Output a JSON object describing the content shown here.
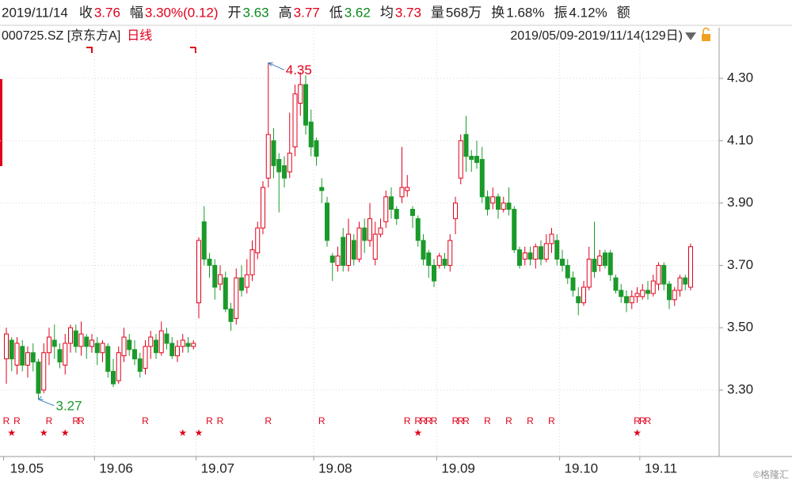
{
  "header": {
    "date": "2019/11/14",
    "items": [
      {
        "label": "收",
        "value": "3.76",
        "color": "#e0001b"
      },
      {
        "label": "幅",
        "value": "3.30%(0.12)",
        "color": "#e0001b"
      },
      {
        "label": "开",
        "value": "3.63",
        "color": "#0b8a1e"
      },
      {
        "label": "高",
        "value": "3.77",
        "color": "#e0001b"
      },
      {
        "label": "低",
        "value": "3.62",
        "color": "#0b8a1e"
      },
      {
        "label": "均",
        "value": "3.73",
        "color": "#e0001b"
      },
      {
        "label": "量",
        "value": "568万",
        "color": "#222222"
      },
      {
        "label": "换",
        "value": "1.68%",
        "color": "#222222"
      },
      {
        "label": "振",
        "value": "4.12%",
        "color": "#222222"
      },
      {
        "label": "额"
      }
    ],
    "symbol": "000725.SZ [京东方A]",
    "period": "日线",
    "range": "2019/05/09-2019/11/14(129日)"
  },
  "chart_data": {
    "type": "candlestick",
    "up_color": "#e0001b",
    "down_color": "#1a9a2a",
    "categories": [
      "19.05",
      null,
      null,
      null,
      null,
      null,
      null,
      null,
      null,
      null,
      null,
      null,
      null,
      null,
      null,
      null,
      null,
      "19.06",
      null,
      null,
      null,
      null,
      null,
      null,
      null,
      null,
      null,
      null,
      null,
      null,
      null,
      null,
      null,
      null,
      null,
      null,
      "19.07",
      null,
      null,
      null,
      null,
      null,
      null,
      null,
      null,
      null,
      null,
      null,
      null,
      null,
      null,
      null,
      null,
      null,
      null,
      null,
      null,
      null,
      "19.08",
      null,
      null,
      null,
      null,
      null,
      null,
      null,
      null,
      null,
      null,
      null,
      null,
      null,
      null,
      null,
      null,
      null,
      null,
      null,
      null,
      null,
      null,
      "19.09",
      null,
      null,
      null,
      null,
      null,
      null,
      null,
      null,
      null,
      null,
      null,
      null,
      null,
      null,
      null,
      null,
      null,
      null,
      null,
      null,
      null,
      null,
      "19.10",
      null,
      null,
      null,
      null,
      null,
      null,
      null,
      null,
      null,
      null,
      null,
      null,
      null,
      null,
      "19.11",
      null,
      null,
      null,
      null,
      null,
      null,
      null,
      null,
      null
    ],
    "open": [
      3.4,
      3.46,
      3.38,
      3.44,
      3.38,
      3.42,
      3.39,
      3.3,
      3.42,
      3.46,
      3.43,
      3.38,
      3.45,
      3.49,
      3.44,
      3.47,
      3.44,
      3.45,
      3.42,
      3.44,
      3.36,
      3.33,
      3.41,
      3.46,
      3.43,
      3.4,
      3.37,
      3.44,
      3.46,
      3.42,
      3.48,
      3.45,
      3.41,
      3.44,
      3.45,
      3.44,
      3.58,
      3.84,
      3.72,
      3.7,
      3.64,
      3.66,
      3.56,
      3.53,
      3.66,
      3.63,
      3.67,
      3.74,
      3.82,
      3.98,
      4.1,
      4.04,
      4.02,
      4.0,
      4.08,
      4.22,
      4.28,
      4.16,
      4.1,
      3.95,
      3.9,
      3.73,
      3.7,
      3.79,
      3.7,
      3.78,
      3.72,
      3.82,
      3.78,
      3.72,
      3.8,
      3.84,
      3.92,
      3.88,
      3.92,
      3.94,
      3.88,
      3.85,
      3.78,
      3.74,
      3.7,
      3.7,
      3.72,
      3.7,
      3.85,
      3.98,
      4.12,
      4.05,
      4.05,
      4.04,
      3.92,
      3.9,
      3.92,
      3.88,
      3.9,
      3.88,
      3.75,
      3.72,
      3.74,
      3.72,
      3.76,
      3.72,
      3.77,
      3.78,
      3.72,
      3.7,
      3.66,
      3.6,
      3.58,
      3.63,
      3.72,
      3.7,
      3.74,
      3.74,
      3.66,
      3.62,
      3.6,
      3.58,
      3.6,
      3.6,
      3.62,
      3.61,
      3.64,
      3.7,
      3.64,
      3.59,
      3.62,
      3.66,
      3.63
    ],
    "high": [
      3.5,
      3.47,
      3.47,
      3.46,
      3.44,
      3.45,
      3.4,
      3.45,
      3.5,
      3.51,
      3.45,
      3.48,
      3.51,
      3.51,
      3.52,
      3.48,
      3.48,
      3.47,
      3.46,
      3.45,
      3.4,
      3.44,
      3.5,
      3.48,
      3.46,
      3.42,
      3.46,
      3.49,
      3.48,
      3.52,
      3.5,
      3.47,
      3.46,
      3.48,
      3.47,
      3.46,
      3.79,
      3.89,
      3.74,
      3.72,
      3.7,
      3.68,
      3.58,
      3.69,
      3.7,
      3.72,
      3.78,
      3.84,
      3.97,
      4.35,
      4.14,
      4.06,
      4.05,
      4.19,
      4.28,
      4.32,
      4.31,
      4.2,
      4.11,
      3.98,
      3.92,
      3.74,
      3.76,
      3.82,
      3.85,
      3.8,
      3.84,
      3.85,
      3.9,
      3.84,
      3.85,
      3.94,
      3.95,
      3.89,
      4.08,
      3.99,
      3.89,
      3.86,
      3.8,
      3.75,
      3.72,
      3.74,
      3.74,
      3.8,
      3.92,
      4.12,
      4.18,
      4.07,
      4.1,
      4.08,
      3.94,
      3.95,
      3.93,
      3.92,
      3.95,
      3.89,
      3.76,
      3.76,
      3.76,
      3.77,
      3.78,
      3.8,
      3.82,
      3.8,
      3.75,
      3.72,
      3.68,
      3.63,
      3.65,
      3.76,
      3.84,
      3.75,
      3.75,
      3.75,
      3.67,
      3.64,
      3.62,
      3.62,
      3.63,
      3.64,
      3.65,
      3.67,
      3.71,
      3.71,
      3.65,
      3.63,
      3.67,
      3.67,
      3.77
    ],
    "low": [
      3.32,
      3.36,
      3.35,
      3.36,
      3.34,
      3.36,
      3.27,
      3.29,
      3.38,
      3.4,
      3.37,
      3.35,
      3.42,
      3.42,
      3.41,
      3.4,
      3.42,
      3.38,
      3.39,
      3.34,
      3.31,
      3.32,
      3.39,
      3.41,
      3.38,
      3.34,
      3.35,
      3.4,
      3.4,
      3.41,
      3.43,
      3.4,
      3.39,
      3.42,
      3.42,
      3.43,
      3.53,
      3.7,
      3.66,
      3.59,
      3.62,
      3.55,
      3.49,
      3.51,
      3.6,
      3.61,
      3.65,
      3.72,
      3.8,
      3.95,
      3.98,
      3.87,
      3.95,
      3.98,
      4.05,
      4.18,
      4.12,
      4.05,
      4.02,
      3.9,
      3.76,
      3.65,
      3.68,
      3.68,
      3.68,
      3.7,
      3.71,
      3.74,
      3.76,
      3.7,
      3.79,
      3.82,
      3.85,
      3.83,
      3.9,
      3.92,
      3.82,
      3.76,
      3.7,
      3.66,
      3.63,
      3.69,
      3.69,
      3.68,
      3.8,
      3.96,
      4.0,
      4.0,
      4.01,
      3.9,
      3.86,
      3.88,
      3.85,
      3.87,
      3.86,
      3.74,
      3.69,
      3.7,
      3.7,
      3.69,
      3.7,
      3.71,
      3.74,
      3.7,
      3.68,
      3.64,
      3.6,
      3.54,
      3.57,
      3.62,
      3.66,
      3.68,
      3.69,
      3.65,
      3.61,
      3.58,
      3.55,
      3.56,
      3.58,
      3.59,
      3.59,
      3.6,
      3.62,
      3.62,
      3.56,
      3.57,
      3.6,
      3.62,
      3.62
    ],
    "close": [
      3.48,
      3.4,
      3.45,
      3.38,
      3.42,
      3.39,
      3.29,
      3.42,
      3.47,
      3.44,
      3.39,
      3.45,
      3.5,
      3.44,
      3.48,
      3.44,
      3.46,
      3.42,
      3.45,
      3.36,
      3.32,
      3.42,
      3.47,
      3.43,
      3.4,
      3.36,
      3.44,
      3.47,
      3.42,
      3.49,
      3.45,
      3.41,
      3.44,
      3.46,
      3.44,
      3.45,
      3.78,
      3.72,
      3.7,
      3.63,
      3.67,
      3.56,
      3.52,
      3.66,
      3.62,
      3.67,
      3.75,
      3.82,
      3.95,
      4.12,
      4.02,
      4.0,
      3.98,
      4.06,
      4.25,
      4.28,
      4.15,
      4.08,
      4.05,
      3.94,
      3.78,
      3.71,
      3.73,
      3.7,
      3.8,
      3.72,
      3.82,
      3.78,
      3.85,
      3.8,
      3.82,
      3.92,
      3.88,
      3.85,
      3.95,
      3.95,
      3.86,
      3.78,
      3.72,
      3.7,
      3.65,
      3.73,
      3.7,
      3.78,
      3.9,
      4.1,
      4.05,
      4.04,
      4.03,
      3.92,
      3.88,
      3.92,
      3.88,
      3.9,
      3.88,
      3.75,
      3.7,
      3.74,
      3.72,
      3.76,
      3.72,
      3.77,
      3.8,
      3.72,
      3.7,
      3.66,
      3.62,
      3.58,
      3.63,
      3.72,
      3.68,
      3.73,
      3.7,
      3.67,
      3.62,
      3.6,
      3.58,
      3.6,
      3.61,
      3.62,
      3.61,
      3.65,
      3.7,
      3.64,
      3.59,
      3.62,
      3.66,
      3.64,
      3.76
    ],
    "ylim": [
      3.23,
      4.41
    ],
    "yticks": [
      {
        "value": 3.3,
        "label": "3.30"
      },
      {
        "value": 3.5,
        "label": "3.50"
      },
      {
        "value": 3.7,
        "label": "3.70"
      },
      {
        "value": 3.9,
        "label": "3.90"
      },
      {
        "value": 4.1,
        "label": "4.10"
      },
      {
        "value": 4.3,
        "label": "4.30"
      }
    ],
    "grid": true,
    "signals": [
      {
        "label": "R",
        "color": "#e0001b",
        "indices": [
          0,
          2,
          8,
          13,
          14,
          26,
          38,
          40,
          49,
          59,
          75,
          77,
          78,
          79,
          80,
          84,
          85,
          86,
          90,
          94,
          98,
          102,
          118,
          119,
          120
        ]
      },
      {
        "label": "★",
        "color": "#e0001b",
        "indices": [
          1,
          7,
          11,
          33,
          36,
          77,
          118
        ]
      }
    ]
  },
  "watermark": "©格隆汇"
}
